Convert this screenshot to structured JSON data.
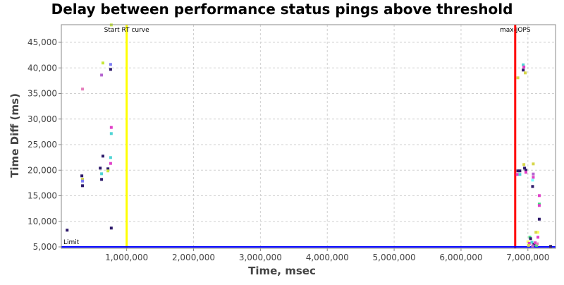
{
  "chart_data": {
    "type": "scatter",
    "title": "Delay between performance status pings above threshold",
    "xlabel": "Time, msec",
    "ylabel": "Time Diff (ms)",
    "xlim": [
      0,
      7390000
    ],
    "ylim": [
      5000,
      48450
    ],
    "grid": true,
    "x_ticks": [
      1000000,
      2000000,
      3000000,
      4000000,
      5000000,
      6000000,
      7000000
    ],
    "x_tick_labels": [
      "1,000,000",
      "2,000,000",
      "3,000,000",
      "4,000,000",
      "5,000,000",
      "6,000,000",
      "7,000,000"
    ],
    "y_ticks": [
      5000,
      10000,
      15000,
      20000,
      25000,
      30000,
      35000,
      40000,
      45000
    ],
    "y_tick_labels": [
      "5,000",
      "10,000",
      "15,000",
      "20,000",
      "25,000",
      "30,000",
      "35,000",
      "40,000",
      "45,000"
    ],
    "markers": [
      {
        "label": "Start RT curve",
        "x": 1000000,
        "color": "#ffff00"
      },
      {
        "label": "max-jOPS",
        "x": 6810000,
        "color": "#ff0000"
      }
    ],
    "limit": {
      "label": "Limit",
      "y": 5000,
      "color": "#0000ff"
    },
    "points": [
      [
        110000,
        8270,
        "#2e1a6b"
      ],
      [
        340000,
        35860,
        "#e57ebc"
      ],
      [
        645000,
        40960,
        "#c8e83c"
      ],
      [
        760000,
        40680,
        "#7b7bf5"
      ],
      [
        760000,
        39710,
        "#2e1a6b"
      ],
      [
        625000,
        38600,
        "#b565d0"
      ],
      [
        770000,
        48400,
        "#c8e83c"
      ],
      [
        770000,
        28360,
        "#e040c8"
      ],
      [
        770000,
        27160,
        "#4ed4d4"
      ],
      [
        645000,
        22750,
        "#2e1a6b"
      ],
      [
        760000,
        22470,
        "#4ed4d4"
      ],
      [
        760000,
        21320,
        "#e040c8"
      ],
      [
        605000,
        20400,
        "#2e1a6b"
      ],
      [
        625000,
        19300,
        "#4ed4d4"
      ],
      [
        720000,
        20270,
        "#2e1a6b"
      ],
      [
        720000,
        19860,
        "#c8e83c"
      ],
      [
        625000,
        18200,
        "#2e1a6b"
      ],
      [
        330000,
        18890,
        "#2e1a6b"
      ],
      [
        340000,
        18240,
        "#d6d64a"
      ],
      [
        340000,
        17870,
        "#7b7bf5"
      ],
      [
        340000,
        16960,
        "#2e1a6b"
      ],
      [
        770000,
        8680,
        "#2e1a6b"
      ],
      [
        6930000,
        40590,
        "#4ed4d4"
      ],
      [
        6940000,
        40170,
        "#e040c8"
      ],
      [
        6930000,
        39580,
        "#2e1a6b"
      ],
      [
        6960000,
        39020,
        "#d6d64a"
      ],
      [
        6850000,
        38060,
        "#d6d64a"
      ],
      [
        6940000,
        21100,
        "#d6d64a"
      ],
      [
        7080000,
        21230,
        "#d6d64a"
      ],
      [
        6850000,
        19860,
        "#2e1a6b"
      ],
      [
        6880000,
        19860,
        "#2e1a6b"
      ],
      [
        6840000,
        19170,
        "#e040c8"
      ],
      [
        6880000,
        19170,
        "#4ed4d4"
      ],
      [
        6950000,
        20400,
        "#2e1a6b"
      ],
      [
        6970000,
        20000,
        "#2e1a6b"
      ],
      [
        6970000,
        19590,
        "#e040c8"
      ],
      [
        7080000,
        19250,
        "#b565d0"
      ],
      [
        7080000,
        18610,
        "#e040c8"
      ],
      [
        7070000,
        18060,
        "#80ffff"
      ],
      [
        7070000,
        16820,
        "#2e1a6b"
      ],
      [
        7170000,
        15030,
        "#e040c8"
      ],
      [
        7170000,
        13370,
        "#3de07a"
      ],
      [
        7170000,
        13100,
        "#e040c8"
      ],
      [
        7170000,
        10420,
        "#2e1a6b"
      ],
      [
        7150000,
        7850,
        "#ffff60"
      ],
      [
        7120000,
        7850,
        "#d6d64a"
      ],
      [
        7150000,
        6890,
        "#e040c8"
      ],
      [
        7030000,
        6890,
        "#3de07a"
      ],
      [
        7040000,
        6610,
        "#2e1a6b"
      ],
      [
        7000000,
        6000,
        "#ffff60"
      ],
      [
        7020000,
        5700,
        "#e040c8"
      ],
      [
        7060000,
        5900,
        "#4ed4d4"
      ],
      [
        7090000,
        5500,
        "#2e1a6b"
      ],
      [
        7110000,
        5800,
        "#e040c8"
      ],
      [
        7130000,
        5300,
        "#3de07a"
      ],
      [
        7010000,
        5300,
        "#d6d64a"
      ],
      [
        7070000,
        5200,
        "#b565d0"
      ],
      [
        7140000,
        5600,
        "#e57ebc"
      ],
      [
        7340000,
        5100,
        "#2e1a6b"
      ]
    ]
  }
}
